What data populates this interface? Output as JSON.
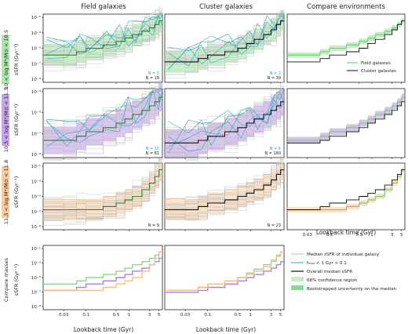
{
  "figure": {
    "columns": [
      "Field galaxies",
      "Cluster galaxies",
      "Compare environments"
    ],
    "rows": [
      {
        "label_lines": [
          "10 < log M*/M⊙ < 10.5",
          "sSFR (Gyr⁻¹)"
        ]
      },
      {
        "label_lines": [
          "10.5 < log M*/M⊙ < 11.3",
          "sSFR (Gyr⁻¹)"
        ]
      },
      {
        "label_lines": [
          "11.3 < log M*/M⊙ < 11.8",
          "sSFR (Gyr⁻¹)"
        ]
      },
      {
        "label_lines": [
          "Compare masses",
          "sSFR (Gyr⁻¹)"
        ]
      }
    ],
    "xlabel": "Lookback time (Gyr)",
    "xticks": [
      "0.03",
      "0.1",
      "0.5",
      "1",
      "3",
      "5"
    ],
    "yticks_row0": [
      "10⁻¹",
      "10⁻³",
      "10⁻⁵",
      "10⁻⁷",
      "10⁻⁹"
    ],
    "yticks_row1": [
      "10⁻³",
      "10⁻⁵",
      "10⁻⁷",
      "10⁻⁹"
    ],
    "yticks_row2": [
      "10⁻¹",
      "10⁻³",
      "10⁻⁵",
      "10⁻⁷",
      "10⁻⁹"
    ],
    "yticks_row3": [
      "10⁻¹",
      "10⁻³",
      "10⁻⁵",
      "10⁻⁷",
      "10⁻⁹"
    ],
    "counts": [
      {
        "row": 0,
        "col": 0,
        "cyan": "N = 3",
        "black": "N = 19"
      },
      {
        "row": 0,
        "col": 1,
        "cyan": "N = 2",
        "black": "N = 39"
      },
      {
        "row": 1,
        "col": 0,
        "cyan": "N = 10",
        "black": "N = 81"
      },
      {
        "row": 1,
        "col": 1,
        "cyan": "N = 6",
        "black": "N = 160"
      },
      {
        "row": 2,
        "col": 0,
        "cyan": "",
        "black": "N = 9"
      },
      {
        "row": 2,
        "col": 1,
        "cyan": "",
        "black": "N = 23"
      }
    ],
    "env_legend": [
      "Field galaxies",
      "Cluster galaxies"
    ],
    "main_legend": [
      "Median sSFR of individual galaxy",
      "fₘₐₓ < 1 Gyr > 0.1",
      "Overall median sSFR",
      "68% confidence region",
      "Bootstrapped uncertainty on the median"
    ],
    "colors": {
      "field": "#6ad26a",
      "cluster": "#111111",
      "m1": "#8cd98c",
      "m2": "#b07fe0",
      "m3": "#f7be84",
      "individual": "#bdbdbd",
      "highlight": "#2aa8b8"
    }
  },
  "chart_data": [
    {
      "type": "line",
      "panel": "field, 10 < log M < 10.5",
      "xscale": "log",
      "yscale": "log",
      "xlim": [
        0.01,
        6
      ],
      "ylim": [
        1e-10,
        1
      ],
      "x_bin_edges": [
        0.01,
        0.03,
        0.06,
        0.1,
        0.25,
        0.5,
        0.8,
        1.2,
        2,
        3,
        4,
        5,
        6
      ],
      "series": [
        {
          "name": "Overall median sSFR",
          "y": [
            1e-06,
            1e-06,
            3e-06,
            1e-05,
            3e-05,
            0.0001,
            0.0003,
            0.001,
            0.003,
            0.01,
            0.03,
            0.1
          ]
        }
      ]
    },
    {
      "type": "line",
      "panel": "cluster, 10 < log M < 10.5",
      "xscale": "log",
      "yscale": "log",
      "xlim": [
        0.01,
        6
      ],
      "ylim": [
        1e-10,
        1
      ],
      "x_bin_edges": [
        0.01,
        0.03,
        0.06,
        0.1,
        0.25,
        0.5,
        0.8,
        1.2,
        2,
        3,
        4,
        5,
        6
      ],
      "series": [
        {
          "name": "Overall median sSFR",
          "y": [
            1e-07,
            1e-07,
            3e-07,
            1e-06,
            3e-06,
            1e-05,
            5e-05,
            0.0002,
            0.001,
            0.005,
            0.03,
            0.1
          ]
        }
      ]
    },
    {
      "type": "line",
      "panel": "field, 10.5 < log M < 11.3",
      "xscale": "log",
      "yscale": "log",
      "xlim": [
        0.01,
        6
      ],
      "ylim": [
        1e-09,
        0.1
      ],
      "x_bin_edges": [
        0.01,
        0.03,
        0.06,
        0.1,
        0.25,
        0.5,
        0.8,
        1.2,
        2,
        3,
        4,
        5,
        6
      ],
      "series": [
        {
          "name": "Overall median sSFR",
          "y": [
            1e-07,
            1e-07,
            3e-07,
            1e-06,
            3e-06,
            1e-05,
            3e-05,
            0.0001,
            0.0003,
            0.001,
            0.003,
            0.01
          ]
        }
      ]
    },
    {
      "type": "line",
      "panel": "cluster, 10.5 < log M < 11.3",
      "xscale": "log",
      "yscale": "log",
      "xlim": [
        0.01,
        6
      ],
      "ylim": [
        1e-09,
        0.1
      ],
      "x_bin_edges": [
        0.01,
        0.03,
        0.06,
        0.1,
        0.25,
        0.5,
        0.8,
        1.2,
        2,
        3,
        4,
        5,
        6
      ],
      "series": [
        {
          "name": "Overall median sSFR",
          "y": [
            5e-08,
            5e-08,
            1e-07,
            3e-07,
            1e-06,
            3e-06,
            1e-05,
            3e-05,
            0.0001,
            0.0003,
            0.001,
            0.003
          ]
        }
      ]
    },
    {
      "type": "line",
      "panel": "field, 11.3 < log M < 11.8",
      "xscale": "log",
      "yscale": "log",
      "xlim": [
        0.01,
        6
      ],
      "ylim": [
        1e-10,
        1
      ],
      "x_bin_edges": [
        0.01,
        0.03,
        0.06,
        0.1,
        0.25,
        0.5,
        0.8,
        1.2,
        2,
        3,
        4,
        5,
        6
      ],
      "series": [
        {
          "name": "Overall median sSFR",
          "y": [
            1e-07,
            1e-07,
            1e-07,
            1e-07,
            3e-07,
            1e-06,
            3e-06,
            1e-05,
            0.0001,
            0.001,
            0.01,
            0.1
          ]
        }
      ]
    },
    {
      "type": "line",
      "panel": "cluster, 11.3 < log M < 11.8",
      "xscale": "log",
      "yscale": "log",
      "xlim": [
        0.01,
        6
      ],
      "ylim": [
        1e-10,
        1
      ],
      "x_bin_edges": [
        0.01,
        0.03,
        0.06,
        0.1,
        0.25,
        0.5,
        0.8,
        1.2,
        2,
        3,
        4,
        5,
        6
      ],
      "series": [
        {
          "name": "Overall median sSFR",
          "y": [
            1e-07,
            1e-07,
            3e-07,
            1e-06,
            3e-06,
            1e-05,
            3e-05,
            0.0001,
            0.0005,
            0.003,
            0.02,
            0.1
          ]
        }
      ]
    }
  ]
}
